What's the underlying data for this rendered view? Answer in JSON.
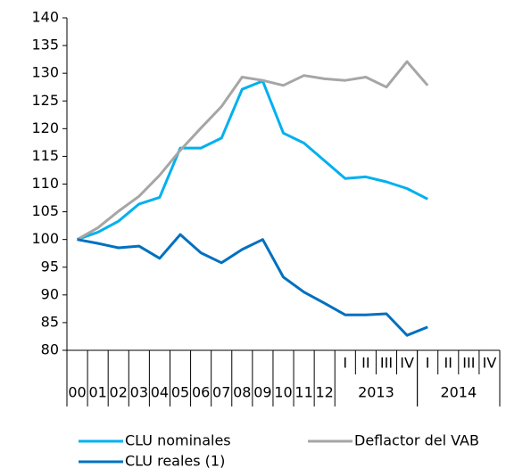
{
  "chart_data": {
    "type": "line",
    "categories": [
      "00",
      "01",
      "02",
      "03",
      "04",
      "05",
      "06",
      "07",
      "08",
      "09",
      "10",
      "11",
      "12",
      "I",
      "II",
      "III",
      "IV",
      "I",
      "II",
      "III",
      "IV"
    ],
    "groups": [
      {
        "label": "2013",
        "span": [
          13,
          16
        ]
      },
      {
        "label": "2014",
        "span": [
          17,
          20
        ]
      }
    ],
    "series": [
      {
        "name": "CLU nominales",
        "color": "#00b0f0",
        "values": [
          100,
          101.3,
          103.3,
          106.4,
          107.6,
          116.5,
          116.5,
          118.3,
          127.1,
          128.6,
          119.2,
          117.4,
          114.2,
          111.0,
          111.3,
          110.4,
          109.2,
          107.3,
          null,
          null,
          null
        ]
      },
      {
        "name": "Deflactor del VAB",
        "color": "#a6a6a6",
        "values": [
          100,
          102.1,
          105.1,
          107.8,
          111.6,
          116.1,
          120.1,
          124.0,
          129.3,
          128.7,
          127.8,
          129.6,
          129.0,
          128.7,
          129.3,
          127.5,
          132.1,
          127.8,
          null,
          null,
          null
        ]
      },
      {
        "name": "CLU reales (1)",
        "color": "#0070c0",
        "values": [
          100,
          99.3,
          98.5,
          98.8,
          96.6,
          100.9,
          97.6,
          95.8,
          98.2,
          100.0,
          93.2,
          90.5,
          88.5,
          86.4,
          86.4,
          86.6,
          82.7,
          84.2,
          null,
          null,
          null
        ]
      }
    ],
    "ylim": [
      80,
      140
    ],
    "yticks": [
      80,
      85,
      90,
      95,
      100,
      105,
      110,
      115,
      120,
      125,
      130,
      135,
      140
    ]
  }
}
